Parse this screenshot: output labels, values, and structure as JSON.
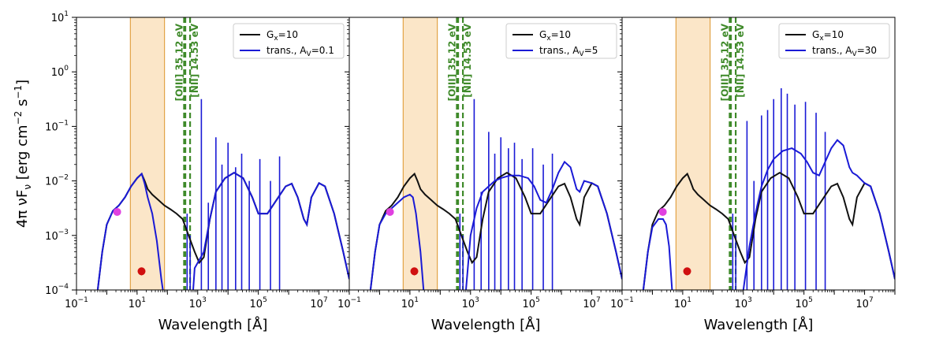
{
  "chart_data": {
    "type": "line",
    "ylabel": "4π νF_ν [erg cm⁻² s⁻¹]",
    "xlabel": "Wavelength [Å]",
    "x_scale": "log",
    "y_scale": "log",
    "xlim_exp": [
      -1,
      8
    ],
    "ylim_exp": [
      -4,
      1
    ],
    "x_tick_exps": [
      -1,
      1,
      3,
      5,
      7
    ],
    "y_tick_exps": [
      -4,
      -3,
      -2,
      -1,
      0,
      1
    ],
    "shaded_band": {
      "x_range": [
        6,
        80
      ],
      "color": "#fbe6c8",
      "edge": "#e2a347"
    },
    "vlines": [
      {
        "x": 354,
        "label": "[OIII] 35.12 eV",
        "color": "#3f8a2a"
      },
      {
        "x": 390,
        "label": "",
        "color": "#3f8a2a"
      },
      {
        "x": 560,
        "label": "[NII] 14.53 eV",
        "color": "#3f8a2a"
      }
    ],
    "series_styles": {
      "Gx": "#111111",
      "trans": "#1a1ad6"
    },
    "points": [
      {
        "x": 2.2,
        "y": 0.0027,
        "color": "#e040e0"
      },
      {
        "x": 14,
        "y": 0.00022,
        "color": "#d01010",
        "yerr": [
          3.5e-05,
          3.5e-05
        ]
      }
    ],
    "panels": [
      {
        "legend": [
          "G_x=10",
          "trans., A_V=0.1"
        ],
        "gx_curve": [
          [
            -0.3,
            -4
          ],
          [
            -0.15,
            -3.3
          ],
          [
            0,
            -2.8
          ],
          [
            0.2,
            -2.55
          ],
          [
            0.4,
            -2.45
          ],
          [
            0.6,
            -2.3
          ],
          [
            0.8,
            -2.1
          ],
          [
            1,
            -1.95
          ],
          [
            1.15,
            -1.87
          ],
          [
            1.25,
            -2.0
          ],
          [
            1.35,
            -2.15
          ],
          [
            1.5,
            -2.25
          ],
          [
            1.7,
            -2.35
          ],
          [
            1.9,
            -2.45
          ],
          [
            2.1,
            -2.52
          ],
          [
            2.3,
            -2.6
          ],
          [
            2.5,
            -2.7
          ],
          [
            2.7,
            -3.0
          ],
          [
            2.9,
            -3.3
          ],
          [
            3.05,
            -3.5
          ],
          [
            3.2,
            -3.4
          ],
          [
            3.4,
            -2.7
          ],
          [
            3.6,
            -2.2
          ],
          [
            3.9,
            -1.95
          ],
          [
            4.2,
            -1.85
          ],
          [
            4.5,
            -1.95
          ],
          [
            4.8,
            -2.3
          ],
          [
            5,
            -2.6
          ],
          [
            5.3,
            -2.6
          ],
          [
            5.6,
            -2.35
          ],
          [
            5.9,
            -2.1
          ],
          [
            6.1,
            -2.05
          ],
          [
            6.3,
            -2.3
          ],
          [
            6.5,
            -2.7
          ],
          [
            6.6,
            -2.8
          ],
          [
            6.75,
            -2.3
          ],
          [
            7,
            -2.04
          ],
          [
            7.2,
            -2.1
          ],
          [
            7.5,
            -2.6
          ],
          [
            7.8,
            -3.3
          ],
          [
            8,
            -3.8
          ]
        ],
        "trans_curve": [
          [
            -0.3,
            -4
          ],
          [
            -0.15,
            -3.3
          ],
          [
            0,
            -2.8
          ],
          [
            0.2,
            -2.55
          ],
          [
            0.4,
            -2.45
          ],
          [
            0.6,
            -2.3
          ],
          [
            0.8,
            -2.1
          ],
          [
            1,
            -1.95
          ],
          [
            1.15,
            -1.87
          ],
          [
            1.25,
            -2.05
          ],
          [
            1.35,
            -2.3
          ],
          [
            1.5,
            -2.6
          ],
          [
            1.65,
            -3.1
          ],
          [
            1.8,
            -3.8
          ],
          [
            1.85,
            -4
          ]
        ],
        "trans_tail": [
          [
            2.85,
            -4
          ],
          [
            2.9,
            -3.6
          ],
          [
            3,
            -3.5
          ],
          [
            3.2,
            -3.3
          ],
          [
            3.4,
            -2.7
          ],
          [
            3.6,
            -2.2
          ],
          [
            3.9,
            -1.95
          ],
          [
            4.2,
            -1.85
          ],
          [
            4.5,
            -1.95
          ],
          [
            4.8,
            -2.3
          ],
          [
            5,
            -2.6
          ],
          [
            5.3,
            -2.6
          ],
          [
            5.6,
            -2.35
          ],
          [
            5.9,
            -2.1
          ],
          [
            6.1,
            -2.05
          ],
          [
            6.3,
            -2.3
          ],
          [
            6.5,
            -2.7
          ],
          [
            6.6,
            -2.8
          ],
          [
            6.75,
            -2.3
          ],
          [
            7,
            -2.04
          ],
          [
            7.2,
            -2.1
          ],
          [
            7.5,
            -2.6
          ],
          [
            7.8,
            -3.3
          ],
          [
            8,
            -3.8
          ]
        ],
        "spikes": [
          [
            2.65,
            -2.6
          ],
          [
            2.75,
            -3.0
          ],
          [
            3.12,
            -0.5
          ],
          [
            3.35,
            -2.4
          ],
          [
            3.6,
            -1.2
          ],
          [
            3.8,
            -1.7
          ],
          [
            4.0,
            -1.3
          ],
          [
            4.25,
            -1.75
          ],
          [
            4.45,
            -1.5
          ],
          [
            4.7,
            -2.0
          ],
          [
            5.05,
            -1.6
          ],
          [
            5.4,
            -2.0
          ],
          [
            5.7,
            -1.55
          ]
        ]
      },
      {
        "legend": [
          "G_x=10",
          "trans., A_V=5"
        ],
        "gx_curve": [
          [
            -0.3,
            -4
          ],
          [
            -0.15,
            -3.3
          ],
          [
            0,
            -2.8
          ],
          [
            0.2,
            -2.55
          ],
          [
            0.4,
            -2.45
          ],
          [
            0.6,
            -2.3
          ],
          [
            0.8,
            -2.1
          ],
          [
            1,
            -1.95
          ],
          [
            1.15,
            -1.87
          ],
          [
            1.25,
            -2.0
          ],
          [
            1.35,
            -2.15
          ],
          [
            1.5,
            -2.25
          ],
          [
            1.7,
            -2.35
          ],
          [
            1.9,
            -2.45
          ],
          [
            2.1,
            -2.52
          ],
          [
            2.3,
            -2.6
          ],
          [
            2.5,
            -2.7
          ],
          [
            2.7,
            -3.0
          ],
          [
            2.9,
            -3.3
          ],
          [
            3.05,
            -3.5
          ],
          [
            3.2,
            -3.4
          ],
          [
            3.4,
            -2.7
          ],
          [
            3.6,
            -2.2
          ],
          [
            3.9,
            -1.95
          ],
          [
            4.2,
            -1.85
          ],
          [
            4.5,
            -1.95
          ],
          [
            4.8,
            -2.3
          ],
          [
            5,
            -2.6
          ],
          [
            5.3,
            -2.6
          ],
          [
            5.6,
            -2.35
          ],
          [
            5.9,
            -2.1
          ],
          [
            6.1,
            -2.05
          ],
          [
            6.3,
            -2.3
          ],
          [
            6.5,
            -2.7
          ],
          [
            6.6,
            -2.8
          ],
          [
            6.75,
            -2.3
          ],
          [
            7,
            -2.04
          ],
          [
            7.2,
            -2.1
          ],
          [
            7.5,
            -2.6
          ],
          [
            7.8,
            -3.3
          ],
          [
            8,
            -3.8
          ]
        ],
        "trans_curve": [
          [
            -0.3,
            -4
          ],
          [
            -0.15,
            -3.3
          ],
          [
            0,
            -2.8
          ],
          [
            0.2,
            -2.6
          ],
          [
            0.4,
            -2.5
          ],
          [
            0.6,
            -2.4
          ],
          [
            0.8,
            -2.3
          ],
          [
            1,
            -2.25
          ],
          [
            1.1,
            -2.3
          ],
          [
            1.2,
            -2.6
          ],
          [
            1.35,
            -3.3
          ],
          [
            1.45,
            -4
          ]
        ],
        "trans_tail": [
          [
            2.85,
            -4
          ],
          [
            3,
            -3.0
          ],
          [
            3.2,
            -2.5
          ],
          [
            3.4,
            -2.2
          ],
          [
            3.6,
            -2.1
          ],
          [
            3.8,
            -2.0
          ],
          [
            4,
            -1.95
          ],
          [
            4.3,
            -1.9
          ],
          [
            4.6,
            -1.9
          ],
          [
            4.9,
            -1.95
          ],
          [
            5.1,
            -2.1
          ],
          [
            5.3,
            -2.35
          ],
          [
            5.5,
            -2.4
          ],
          [
            5.7,
            -2.15
          ],
          [
            5.9,
            -1.85
          ],
          [
            6.1,
            -1.65
          ],
          [
            6.3,
            -1.75
          ],
          [
            6.5,
            -2.15
          ],
          [
            6.6,
            -2.2
          ],
          [
            6.75,
            -2.0
          ],
          [
            7,
            -2.04
          ],
          [
            7.2,
            -2.1
          ],
          [
            7.5,
            -2.6
          ],
          [
            7.8,
            -3.3
          ],
          [
            8,
            -3.8
          ]
        ],
        "spikes": [
          [
            2.65,
            -2.6
          ],
          [
            2.75,
            -3.0
          ],
          [
            3.12,
            -0.5
          ],
          [
            3.35,
            -2.2
          ],
          [
            3.6,
            -1.1
          ],
          [
            3.8,
            -1.5
          ],
          [
            4.0,
            -1.2
          ],
          [
            4.25,
            -1.4
          ],
          [
            4.45,
            -1.3
          ],
          [
            4.7,
            -1.6
          ],
          [
            5.05,
            -1.4
          ],
          [
            5.4,
            -1.7
          ],
          [
            5.7,
            -1.5
          ]
        ]
      },
      {
        "legend": [
          "G_x=10",
          "trans., A_V=30"
        ],
        "gx_curve": [
          [
            -0.3,
            -4
          ],
          [
            -0.15,
            -3.3
          ],
          [
            0,
            -2.8
          ],
          [
            0.2,
            -2.55
          ],
          [
            0.4,
            -2.45
          ],
          [
            0.6,
            -2.3
          ],
          [
            0.8,
            -2.1
          ],
          [
            1,
            -1.95
          ],
          [
            1.15,
            -1.87
          ],
          [
            1.25,
            -2.0
          ],
          [
            1.35,
            -2.15
          ],
          [
            1.5,
            -2.25
          ],
          [
            1.7,
            -2.35
          ],
          [
            1.9,
            -2.45
          ],
          [
            2.1,
            -2.52
          ],
          [
            2.3,
            -2.6
          ],
          [
            2.5,
            -2.7
          ],
          [
            2.7,
            -3.0
          ],
          [
            2.9,
            -3.3
          ],
          [
            3.05,
            -3.5
          ],
          [
            3.2,
            -3.4
          ],
          [
            3.4,
            -2.7
          ],
          [
            3.6,
            -2.2
          ],
          [
            3.9,
            -1.95
          ],
          [
            4.2,
            -1.85
          ],
          [
            4.5,
            -1.95
          ],
          [
            4.8,
            -2.3
          ],
          [
            5,
            -2.6
          ],
          [
            5.3,
            -2.6
          ],
          [
            5.6,
            -2.35
          ],
          [
            5.9,
            -2.1
          ],
          [
            6.1,
            -2.05
          ],
          [
            6.3,
            -2.3
          ],
          [
            6.5,
            -2.7
          ],
          [
            6.6,
            -2.8
          ],
          [
            6.75,
            -2.3
          ],
          [
            7,
            -2.04
          ],
          [
            7.2,
            -2.1
          ],
          [
            7.5,
            -2.6
          ],
          [
            7.8,
            -3.3
          ],
          [
            8,
            -3.8
          ]
        ],
        "trans_curve": [
          [
            -0.3,
            -4
          ],
          [
            -0.15,
            -3.3
          ],
          [
            0,
            -2.85
          ],
          [
            0.2,
            -2.7
          ],
          [
            0.35,
            -2.7
          ],
          [
            0.45,
            -2.8
          ],
          [
            0.55,
            -3.2
          ],
          [
            0.65,
            -4
          ]
        ],
        "trans_tail": [
          [
            3.0,
            -4
          ],
          [
            3.2,
            -3.2
          ],
          [
            3.4,
            -2.6
          ],
          [
            3.6,
            -2.1
          ],
          [
            3.8,
            -1.8
          ],
          [
            4,
            -1.6
          ],
          [
            4.3,
            -1.45
          ],
          [
            4.6,
            -1.4
          ],
          [
            4.9,
            -1.5
          ],
          [
            5.1,
            -1.65
          ],
          [
            5.3,
            -1.85
          ],
          [
            5.5,
            -1.9
          ],
          [
            5.7,
            -1.65
          ],
          [
            5.9,
            -1.4
          ],
          [
            6.1,
            -1.25
          ],
          [
            6.3,
            -1.35
          ],
          [
            6.5,
            -1.75
          ],
          [
            6.6,
            -1.85
          ],
          [
            6.75,
            -1.9
          ],
          [
            7,
            -2.04
          ],
          [
            7.2,
            -2.1
          ],
          [
            7.5,
            -2.6
          ],
          [
            7.8,
            -3.3
          ],
          [
            8,
            -3.8
          ]
        ],
        "spikes": [
          [
            2.65,
            -2.6
          ],
          [
            2.75,
            -3.0
          ],
          [
            3.12,
            -0.9
          ],
          [
            3.35,
            -2.0
          ],
          [
            3.6,
            -0.8
          ],
          [
            3.8,
            -0.7
          ],
          [
            4.0,
            -0.5
          ],
          [
            4.25,
            -0.3
          ],
          [
            4.45,
            -0.4
          ],
          [
            4.7,
            -0.6
          ],
          [
            5.05,
            -0.55
          ],
          [
            5.4,
            -0.75
          ],
          [
            5.7,
            -1.1
          ]
        ]
      }
    ]
  },
  "labels": {
    "ylabel": "4π νF",
    "ylabel_sub": "ν",
    "ylabel_rest": " [erg cm",
    "ylabel_sup1": "−2",
    "ylabel_mid": " s",
    "ylabel_sup2": "−1",
    "ylabel_end": "]",
    "xlabel": "Wavelength [Å]"
  }
}
